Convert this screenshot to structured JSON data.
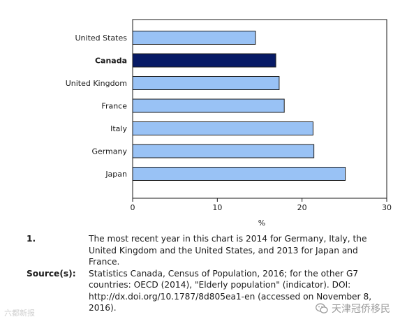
{
  "chart_data": {
    "type": "bar",
    "orientation": "horizontal",
    "categories": [
      "United States",
      "Canada",
      "United Kingdom",
      "France",
      "Italy",
      "Germany",
      "Japan"
    ],
    "values": [
      14.5,
      16.9,
      17.3,
      17.9,
      21.3,
      21.4,
      25.1
    ],
    "highlight": "Canada",
    "xlabel": "%",
    "xlim": [
      0,
      30
    ],
    "xticks": [
      0,
      10,
      20,
      30
    ],
    "grid": false,
    "colors": {
      "bar": "#99c2f5",
      "highlight": "#071a66",
      "edge": "#1a1a1a"
    }
  },
  "notes": [
    {
      "key": "1.",
      "text": "The most recent year in this chart is 2014 for Germany, Italy, the United Kingdom and the United States, and 2013 for Japan and France."
    },
    {
      "key": "Source(s):",
      "text": "Statistics Canada, Census of Population, 2016; for the other G7 countries: OECD (2014), \"Elderly population\" (indicator). DOI: http://dx.doi.org/10.1787/8d805ea1-en (accessed on November 8, 2016)."
    }
  ],
  "watermarks": {
    "left": "六都新报",
    "right": "天津冠侨移民",
    "right_icon": "wechat-icon"
  }
}
